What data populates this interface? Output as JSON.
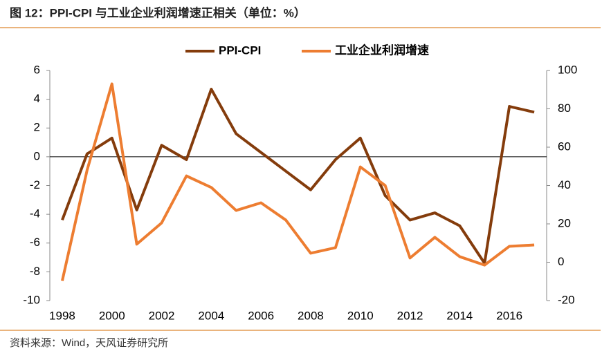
{
  "chart_data": {
    "type": "line",
    "title": "图 12：PPI-CPI 与工业企业利润增速正相关（单位：%）",
    "source": "资料来源：Wind，天风证券研究所",
    "x": [
      1998,
      1999,
      2000,
      2001,
      2002,
      2003,
      2004,
      2005,
      2006,
      2007,
      2008,
      2009,
      2010,
      2011,
      2012,
      2013,
      2014,
      2015,
      2016,
      2017
    ],
    "series": [
      {
        "name": "PPI-CPI",
        "color": "#843c0c",
        "values": [
          -4.4,
          0.2,
          1.3,
          -3.7,
          0.8,
          -0.2,
          4.7,
          1.6,
          0.3,
          -1.0,
          -2.3,
          -0.2,
          1.3,
          -2.7,
          -4.4,
          -3.9,
          -4.8,
          -7.4,
          3.5,
          3.1
        ]
      },
      {
        "name": "工业企业利润增速",
        "color": "#ed7d31",
        "axis": "y2",
        "values": [
          -9.7,
          48,
          93,
          9.4,
          20.5,
          45,
          39,
          27,
          31,
          22,
          4.7,
          7.6,
          49.7,
          40,
          2.2,
          13,
          2.9,
          -1.5,
          8.3,
          9.0
        ]
      }
    ],
    "xlim": [
      1997.5,
      2017.5
    ],
    "xticks": [
      1998,
      2000,
      2002,
      2004,
      2006,
      2008,
      2010,
      2012,
      2014,
      2016
    ],
    "ylim": [
      -10,
      6
    ],
    "yticks": [
      -10,
      -8,
      -6,
      -4,
      -2,
      0,
      2,
      4,
      6
    ],
    "y2lim": [
      -20,
      100
    ],
    "y2ticks": [
      -20,
      0,
      20,
      40,
      60,
      80,
      100
    ]
  }
}
